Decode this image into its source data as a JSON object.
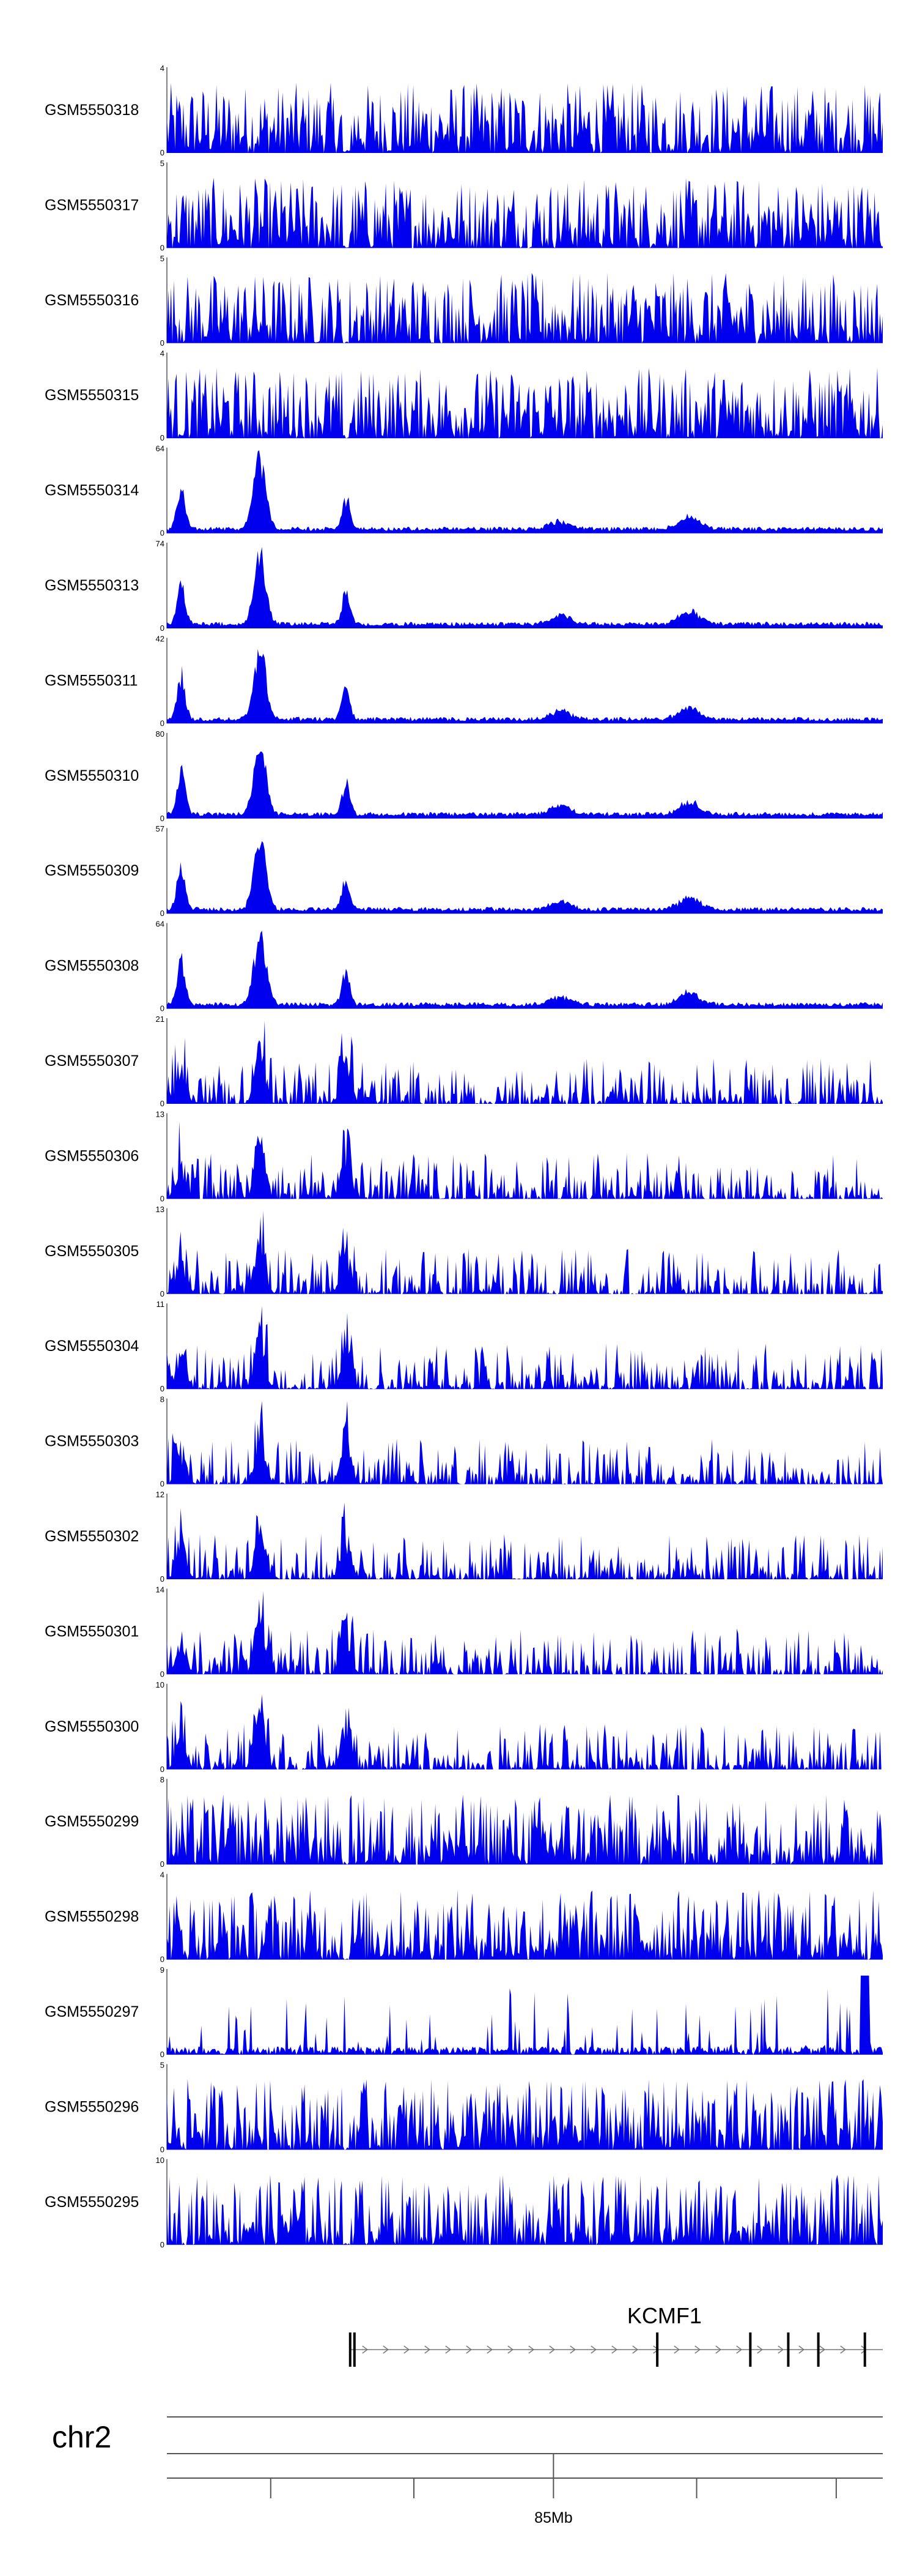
{
  "colors": {
    "signal": "#0000ee",
    "axis": "#000000",
    "gene": "#000000",
    "ideogram": "#555555"
  },
  "chart_data": {
    "type": "area",
    "tracks": [
      {
        "name": "GSM5550318",
        "ymax": 4,
        "ymin": 0,
        "profile": "noise"
      },
      {
        "name": "GSM5550317",
        "ymax": 5,
        "ymin": 0,
        "profile": "noise"
      },
      {
        "name": "GSM5550316",
        "ymax": 5,
        "ymin": 0,
        "profile": "noise"
      },
      {
        "name": "GSM5550315",
        "ymax": 4,
        "ymin": 0,
        "profile": "noise"
      },
      {
        "name": "GSM5550314",
        "ymax": 64,
        "ymin": 0,
        "profile": "peaks"
      },
      {
        "name": "GSM5550313",
        "ymax": 74,
        "ymin": 0,
        "profile": "peaks"
      },
      {
        "name": "GSM5550311",
        "ymax": 42,
        "ymin": 0,
        "profile": "peaks"
      },
      {
        "name": "GSM5550310",
        "ymax": 80,
        "ymin": 0,
        "profile": "peaks"
      },
      {
        "name": "GSM5550309",
        "ymax": 57,
        "ymin": 0,
        "profile": "peaks"
      },
      {
        "name": "GSM5550308",
        "ymax": 64,
        "ymin": 0,
        "profile": "peaks"
      },
      {
        "name": "GSM5550307",
        "ymax": 21,
        "ymin": 0,
        "profile": "mixed"
      },
      {
        "name": "GSM5550306",
        "ymax": 13,
        "ymin": 0,
        "profile": "mixed"
      },
      {
        "name": "GSM5550305",
        "ymax": 13,
        "ymin": 0,
        "profile": "mixed"
      },
      {
        "name": "GSM5550304",
        "ymax": 11,
        "ymin": 0,
        "profile": "mixed"
      },
      {
        "name": "GSM5550303",
        "ymax": 8,
        "ymin": 0,
        "profile": "mixed"
      },
      {
        "name": "GSM5550302",
        "ymax": 12,
        "ymin": 0,
        "profile": "mixed"
      },
      {
        "name": "GSM5550301",
        "ymax": 14,
        "ymin": 0,
        "profile": "mixed"
      },
      {
        "name": "GSM5550300",
        "ymax": 10,
        "ymin": 0,
        "profile": "mixed"
      },
      {
        "name": "GSM5550299",
        "ymax": 8,
        "ymin": 0,
        "profile": "noise"
      },
      {
        "name": "GSM5550298",
        "ymax": 4,
        "ymin": 0,
        "profile": "noise"
      },
      {
        "name": "GSM5550297",
        "ymax": 9,
        "ymin": 0,
        "profile": "sparse"
      },
      {
        "name": "GSM5550296",
        "ymax": 5,
        "ymin": 0,
        "profile": "noise"
      },
      {
        "name": "GSM5550295",
        "ymax": 10,
        "ymin": 0,
        "profile": "noise"
      }
    ],
    "peak_positions": [
      0.02,
      0.13,
      0.25,
      0.55,
      0.73
    ],
    "gene": {
      "name": "KCMF1",
      "start": 0.256,
      "end": 1.0,
      "strand": "+",
      "exons": [
        0.256,
        0.262,
        0.685,
        0.815,
        0.868,
        0.91,
        0.975
      ]
    },
    "chromosome": "chr2",
    "position_label": "85Mb",
    "position_label_at": 0.54,
    "ticks": [
      0.145,
      0.345,
      0.54,
      0.74,
      0.935
    ]
  }
}
